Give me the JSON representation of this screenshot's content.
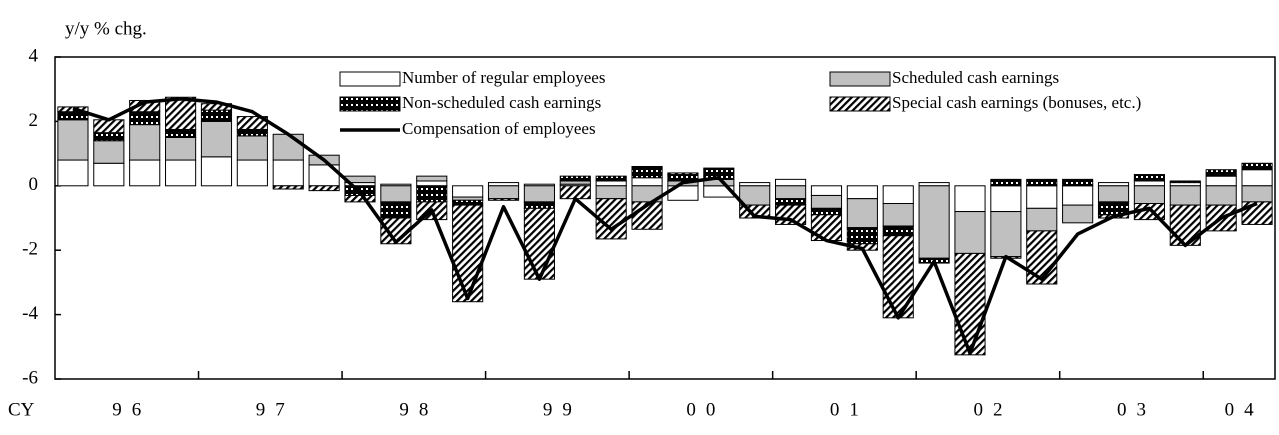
{
  "chart_data": {
    "type": "bar",
    "stacked": true,
    "title": "y/y % chg.",
    "x_axis_label": "CY",
    "categories": [
      null,
      null,
      null,
      null,
      null,
      null,
      null,
      null,
      null,
      null,
      null,
      null,
      null,
      null,
      null,
      null,
      null,
      null,
      null,
      null,
      null,
      null,
      null,
      null,
      null,
      null,
      null,
      null,
      null,
      null,
      null,
      null,
      null,
      null
    ],
    "year_groups": [
      {
        "label": "96",
        "count": 4
      },
      {
        "label": "97",
        "count": 4
      },
      {
        "label": "98",
        "count": 4
      },
      {
        "label": "99",
        "count": 4
      },
      {
        "label": "00",
        "count": 4
      },
      {
        "label": "01",
        "count": 4
      },
      {
        "label": "02",
        "count": 4
      },
      {
        "label": "03",
        "count": 4
      },
      {
        "label": "04",
        "count": 2
      }
    ],
    "series": [
      {
        "name": "Number of regular employees",
        "color": "#ffffff",
        "pattern": "solid",
        "values": [
          0.8,
          0.7,
          0.8,
          0.8,
          0.9,
          0.8,
          0.8,
          0.65,
          0.1,
          0.05,
          0.15,
          -0.35,
          0.1,
          0.05,
          0.05,
          0.15,
          0.25,
          -0.45,
          -0.35,
          0.1,
          0.2,
          -0.3,
          -0.4,
          -0.55,
          0.1,
          -0.8,
          -0.8,
          -0.7,
          -0.6,
          0.1,
          0.15,
          0.1,
          0.3,
          0.5
        ]
      },
      {
        "name": "Scheduled cash earnings",
        "color": "#c0c0c0",
        "pattern": "solid",
        "values": [
          1.25,
          0.7,
          1.1,
          0.7,
          1.1,
          0.75,
          0.8,
          0.3,
          0.2,
          -0.5,
          0.15,
          -0.1,
          -0.4,
          -0.5,
          0.1,
          -0.4,
          -0.5,
          0.15,
          0.2,
          -0.6,
          -0.4,
          -0.4,
          -0.9,
          -0.7,
          -2.25,
          -1.3,
          -1.4,
          -0.7,
          -0.55,
          -0.5,
          -0.55,
          -0.6,
          -0.6,
          -0.5
        ]
      },
      {
        "name": "Non-scheduled cash earnings",
        "color": "#000000",
        "pattern": "grid",
        "values": [
          0.25,
          0.25,
          0.4,
          0.25,
          0.35,
          0.2,
          0,
          0,
          -0.3,
          -0.5,
          -0.5,
          -0.15,
          0,
          -0.2,
          0.15,
          0.15,
          0.35,
          0.2,
          0.35,
          0,
          -0.2,
          -0.2,
          -0.5,
          -0.3,
          -0.15,
          0,
          0.2,
          0.2,
          0.2,
          -0.4,
          0.2,
          0.05,
          0.2,
          0.2
        ]
      },
      {
        "name": "Special cash earnings (bonuses, etc.)",
        "color": "#000000",
        "pattern": "diagonal",
        "values": [
          0.15,
          0.4,
          0.35,
          1.0,
          0.2,
          0.4,
          -0.1,
          -0.15,
          -0.2,
          -0.8,
          -0.55,
          -3.0,
          -0.05,
          -2.2,
          -0.4,
          -1.25,
          -0.85,
          0.05,
          0,
          -0.4,
          -0.6,
          -0.8,
          -0.2,
          -2.55,
          0,
          -3.15,
          -0.05,
          -1.65,
          0,
          -0.1,
          -0.5,
          -1.25,
          -0.8,
          -0.7
        ]
      },
      {
        "name": "Compensation of employees",
        "color": "#000000",
        "type": "line",
        "values": [
          2.4,
          2.05,
          2.6,
          2.7,
          2.6,
          2.3,
          1.6,
          0.8,
          -0.2,
          -1.75,
          -0.75,
          -3.5,
          -0.65,
          -2.9,
          -0.4,
          -1.35,
          -0.6,
          0.1,
          0.25,
          -0.95,
          -1.05,
          -1.7,
          -1.95,
          -4.1,
          -2.35,
          -5.2,
          -2.2,
          -2.9,
          -1.5,
          -0.95,
          -0.7,
          -1.85,
          -1.0,
          -0.55
        ]
      }
    ],
    "ylim": [
      -6,
      4
    ],
    "yticks": [
      -6,
      -4,
      -2,
      0,
      2,
      4
    ],
    "legend": "top",
    "grid": false
  }
}
